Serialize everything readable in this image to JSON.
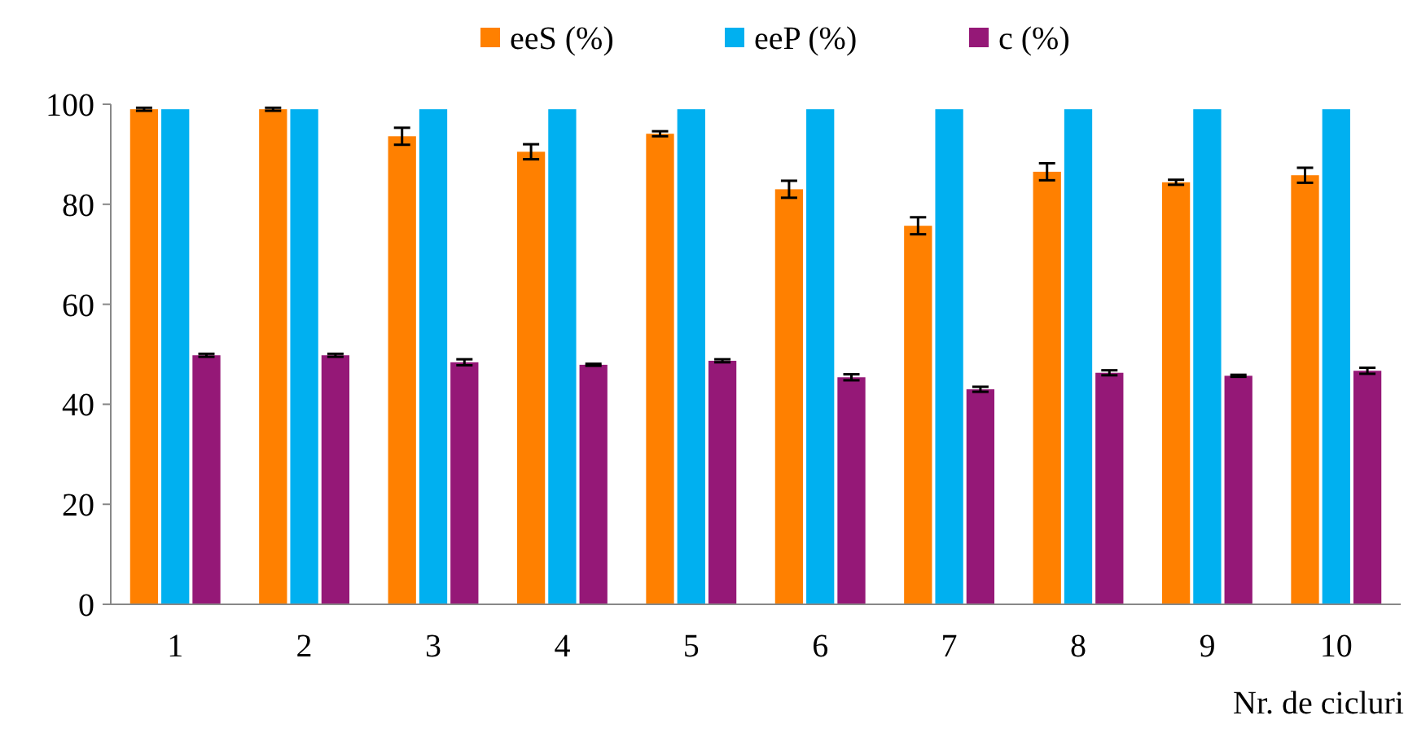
{
  "chart_data": {
    "type": "bar",
    "xlabel": "Nr. de cicluri",
    "categories": [
      "1",
      "2",
      "3",
      "4",
      "5",
      "6",
      "7",
      "8",
      "9",
      "10"
    ],
    "series": [
      {
        "name": "eeS (%)",
        "color": "#ff8000",
        "values": [
          99,
          99,
          93.6,
          90.5,
          94.1,
          83,
          75.7,
          86.5,
          84.4,
          85.8
        ],
        "errors": [
          0.3,
          0.3,
          1.7,
          1.5,
          0.5,
          1.7,
          1.7,
          1.7,
          0.5,
          1.5
        ]
      },
      {
        "name": "eeP (%)",
        "color": "#00b0f0",
        "values": [
          99,
          99,
          99,
          99,
          99,
          99,
          99,
          99,
          99,
          99
        ]
      },
      {
        "name": "c (%)",
        "color": "#951877",
        "values": [
          49.8,
          49.8,
          48.4,
          47.9,
          48.7,
          45.4,
          43,
          46.3,
          45.7,
          46.7
        ],
        "errors": [
          0.3,
          0.3,
          0.6,
          0.2,
          0.3,
          0.6,
          0.5,
          0.5,
          0.2,
          0.6
        ]
      }
    ],
    "ylim": [
      0,
      100
    ],
    "yticks": [
      0,
      20,
      40,
      60,
      80,
      100
    ],
    "legend": "top"
  }
}
